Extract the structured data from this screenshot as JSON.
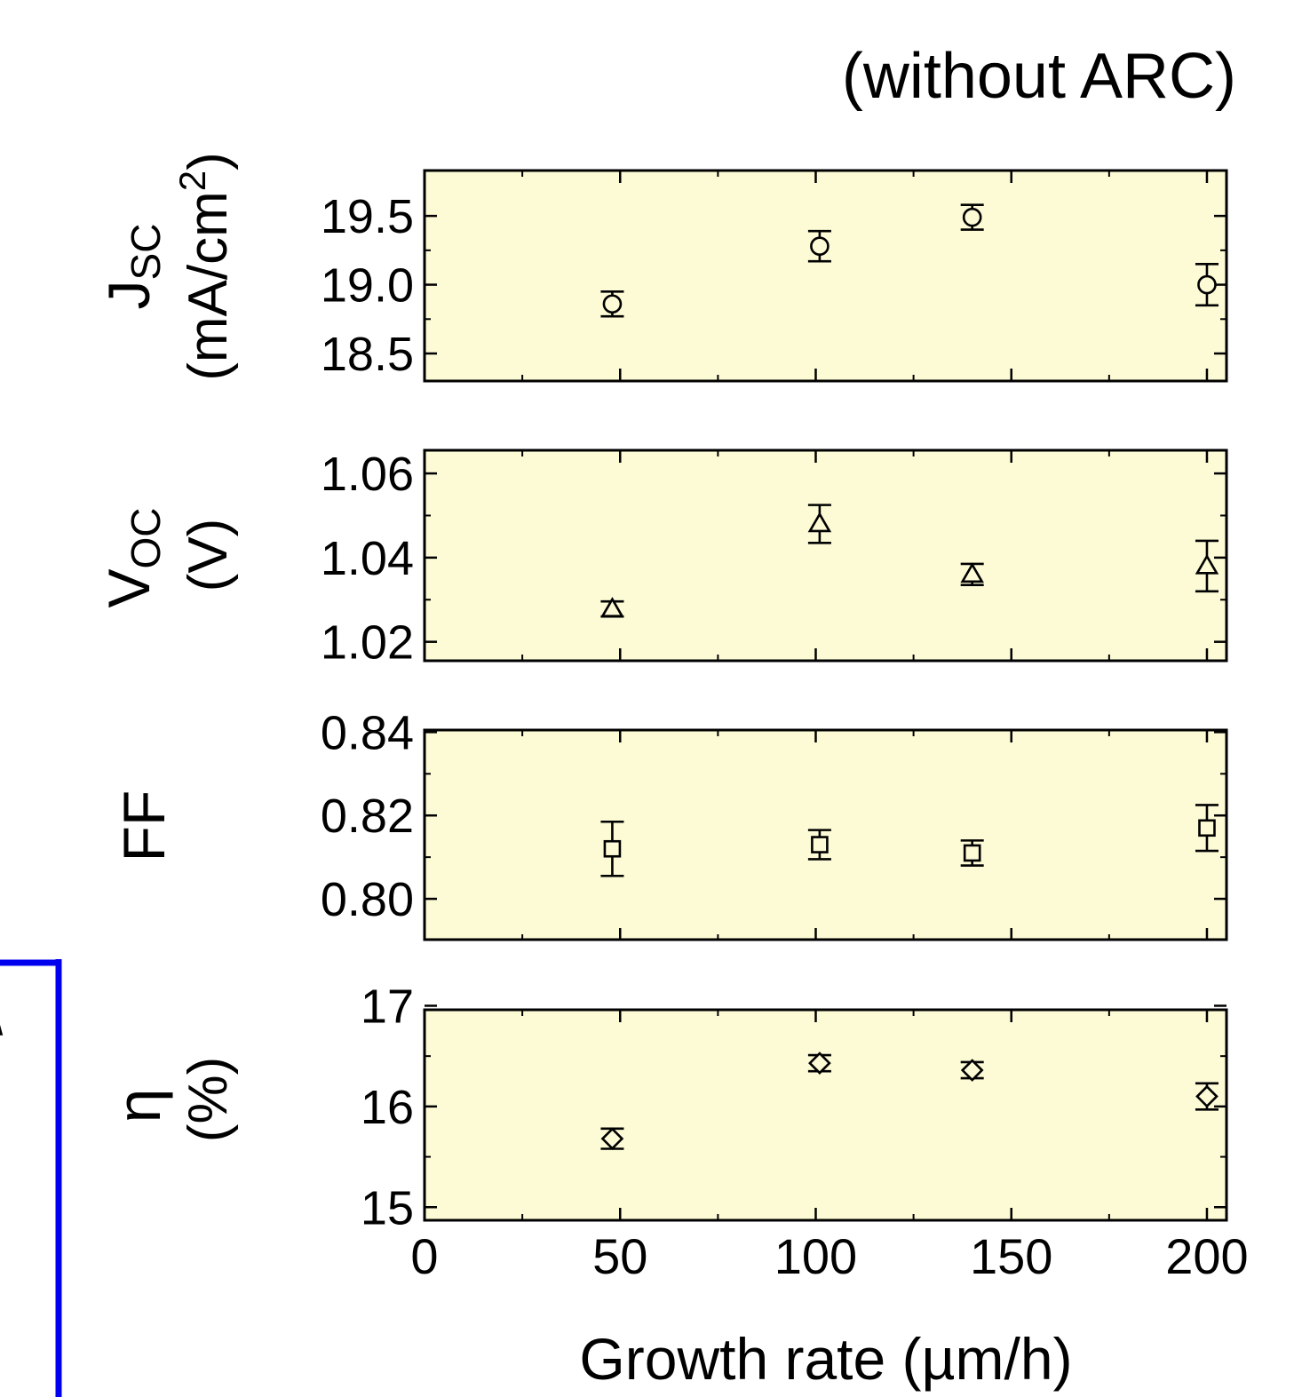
{
  "header": {
    "title": "(without ARC)"
  },
  "colors": {
    "panel_bg": "#fdfbd5",
    "axis": "#000000",
    "frame": "#0000ee"
  },
  "edge_fragment": {
    "glyphs": [
      "\\",
      ")"
    ]
  },
  "chart_data": {
    "type": "scatter",
    "shared_x": {
      "label": "Growth rate (µm/h)",
      "range": [
        0,
        205
      ],
      "tick_labels": [
        "0",
        "50",
        "100",
        "150",
        "200"
      ]
    },
    "panels": [
      {
        "id": "jsc",
        "marker": "circle",
        "ylabel_main": "J",
        "ylabel_sub": "SC",
        "ylabel_unit_prefix": "(mA/cm",
        "ylabel_unit_sup": "2",
        "ylabel_unit_suffix": ")",
        "ylim": [
          18.3,
          19.83
        ],
        "tick_labels": [
          "18.5",
          "19.0",
          "19.5"
        ],
        "points": [
          {
            "x": 48,
            "y": 18.86,
            "err": 0.09
          },
          {
            "x": 101,
            "y": 19.28,
            "err": 0.11
          },
          {
            "x": 140,
            "y": 19.49,
            "err": 0.09
          },
          {
            "x": 200,
            "y": 19.0,
            "err": 0.15
          }
        ]
      },
      {
        "id": "voc",
        "marker": "triangle",
        "ylabel_main": "V",
        "ylabel_sub": "OC",
        "ylabel_unit": "(V)",
        "ylim": [
          1.0155,
          1.0655
        ],
        "tick_labels": [
          "1.02",
          "1.04",
          "1.06"
        ],
        "points": [
          {
            "x": 48,
            "y": 1.0278,
            "err": 0.0018
          },
          {
            "x": 101,
            "y": 1.048,
            "err": 0.0045
          },
          {
            "x": 140,
            "y": 1.036,
            "err": 0.0025
          },
          {
            "x": 200,
            "y": 1.038,
            "err": 0.006
          }
        ]
      },
      {
        "id": "ff",
        "marker": "square",
        "ylabel_main": "FF",
        "ylim": [
          0.79,
          0.8405
        ],
        "tick_labels": [
          "0.80",
          "0.82",
          "0.84"
        ],
        "points": [
          {
            "x": 48,
            "y": 0.812,
            "err": 0.0065
          },
          {
            "x": 101,
            "y": 0.813,
            "err": 0.0035
          },
          {
            "x": 140,
            "y": 0.811,
            "err": 0.003
          },
          {
            "x": 200,
            "y": 0.817,
            "err": 0.0055
          }
        ]
      },
      {
        "id": "eta",
        "marker": "diamond",
        "ylabel_main": "η",
        "ylabel_unit": "(%)",
        "ylim": [
          14.87,
          16.96
        ],
        "tick_labels": [
          "15",
          "16",
          "17"
        ],
        "points": [
          {
            "x": 48,
            "y": 15.68,
            "err": 0.1
          },
          {
            "x": 101,
            "y": 16.43,
            "err": 0.08
          },
          {
            "x": 140,
            "y": 16.36,
            "err": 0.08
          },
          {
            "x": 200,
            "y": 16.1,
            "err": 0.13
          }
        ]
      }
    ]
  }
}
